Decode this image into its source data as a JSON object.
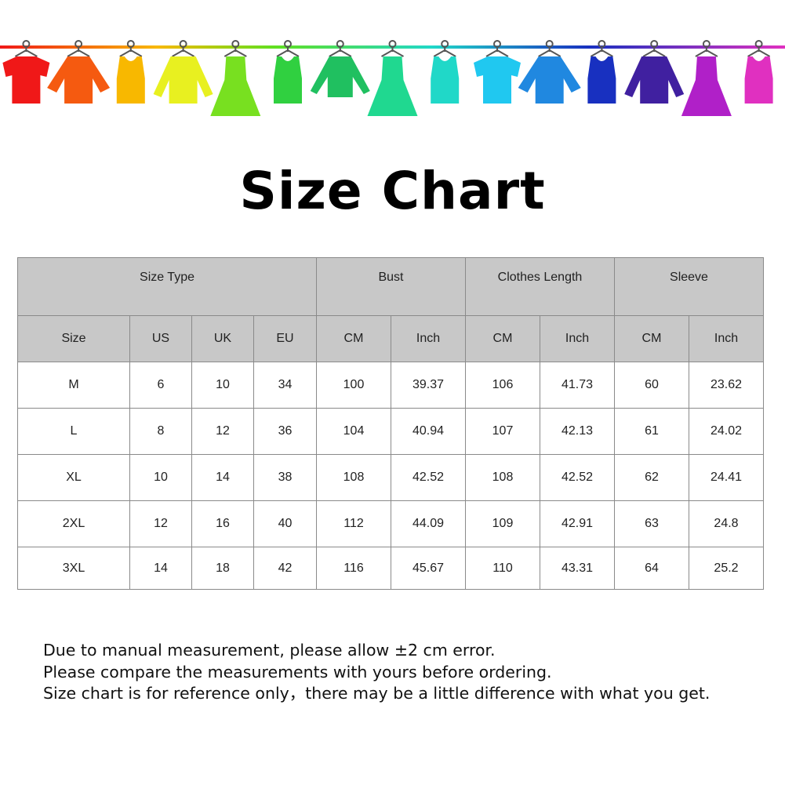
{
  "banner": {
    "icon": "hanging-clothes-illustration",
    "colors": [
      "#f01818",
      "#f55a10",
      "#f8b800",
      "#e8f020",
      "#78e020",
      "#30d040",
      "#20c060",
      "#20d890",
      "#20d8c8",
      "#20c8f0",
      "#2088e0",
      "#1830c0",
      "#4020a0",
      "#b020c8",
      "#e030c0"
    ],
    "shapes": [
      "tshirt",
      "jacket",
      "tank",
      "sweater",
      "dress",
      "tank",
      "longsleeve",
      "dress",
      "tank",
      "tshirt",
      "jacket",
      "tank",
      "sweater",
      "dress",
      "tank"
    ]
  },
  "title": "Size Chart",
  "table": {
    "group_headers": [
      "Size Type",
      "Bust",
      "Clothes Length",
      "Sleeve"
    ],
    "sub_headers": [
      "Size",
      "US",
      "UK",
      "EU",
      "CM",
      "Inch",
      "CM",
      "Inch",
      "CM",
      "Inch"
    ],
    "rows": [
      [
        "M",
        "6",
        "10",
        "34",
        "100",
        "39.37",
        "106",
        "41.73",
        "60",
        "23.62"
      ],
      [
        "L",
        "8",
        "12",
        "36",
        "104",
        "40.94",
        "107",
        "42.13",
        "61",
        "24.02"
      ],
      [
        "XL",
        "10",
        "14",
        "38",
        "108",
        "42.52",
        "108",
        "42.52",
        "62",
        "24.41"
      ],
      [
        "2XL",
        "12",
        "16",
        "40",
        "112",
        "44.09",
        "109",
        "42.91",
        "63",
        "24.8"
      ],
      [
        "3XL",
        "14",
        "18",
        "42",
        "116",
        "45.67",
        "110",
        "43.31",
        "64",
        "25.2"
      ]
    ]
  },
  "notes": [
    "Due to manual measurement, please allow ±2 cm error.",
    "Please compare the measurements with yours before ordering.",
    "Size chart is for reference only，there may be a little difference with what you get."
  ]
}
